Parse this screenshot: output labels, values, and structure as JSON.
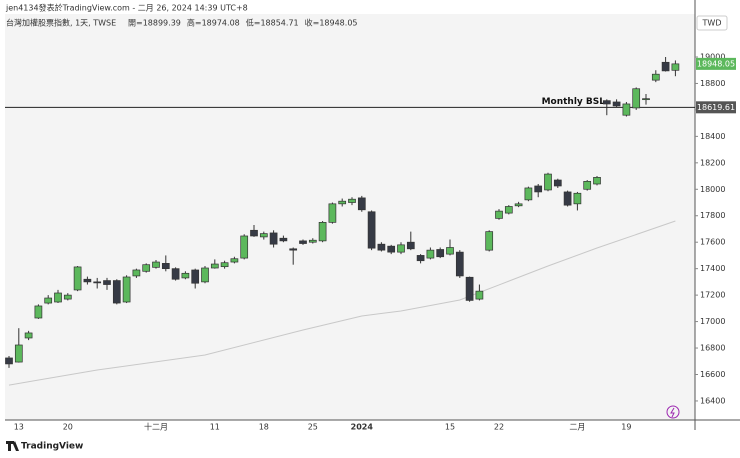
{
  "header": {
    "attribution": "jen4134發表於TradingView.com - 二月 26, 2024 14:39 UTC+8",
    "legend_title": "台灣加權股票指數, 1天, TWSE",
    "legend_values": [
      "開=18899.39",
      "高=18974.08",
      "低=18854.71",
      "收=18948.05"
    ],
    "currency": "TWD",
    "brand": "TradingView"
  },
  "chart_data": {
    "type": "candlestick",
    "categories": [
      null,
      "13",
      null,
      null,
      null,
      null,
      "20",
      null,
      null,
      null,
      null,
      null,
      null,
      null,
      null,
      "十二月",
      null,
      null,
      null,
      null,
      null,
      "11",
      null,
      null,
      null,
      null,
      "18",
      null,
      null,
      null,
      null,
      "25",
      null,
      null,
      null,
      null,
      "2024",
      null,
      null,
      null,
      null,
      null,
      null,
      null,
      null,
      "15",
      null,
      null,
      null,
      null,
      "22",
      null,
      null,
      null,
      null,
      null,
      null,
      null,
      "二月",
      null,
      null,
      null,
      null,
      "19",
      null,
      null,
      null,
      null,
      null
    ],
    "open": [
      16725,
      16694,
      16876,
      17027,
      17140,
      17148,
      17170,
      17239,
      17320,
      17300,
      17310,
      17310,
      17148,
      17345,
      17380,
      17410,
      17440,
      17400,
      17330,
      17390,
      17300,
      17405,
      17415,
      17450,
      17480,
      17690,
      17640,
      17670,
      17630,
      17550,
      17610,
      17600,
      17610,
      17750,
      17890,
      17900,
      17935,
      17830,
      17585,
      17570,
      17525,
      17600,
      17500,
      17480,
      17545,
      17510,
      17525,
      17335,
      17170,
      17540,
      17780,
      17820,
      17875,
      17920,
      18025,
      17995,
      18070,
      17980,
      17890,
      18000,
      18040,
      18670,
      18660,
      18560,
      18615,
      18680,
      18825,
      18960,
      18899.39
    ],
    "high": [
      16740,
      16950,
      16930,
      17130,
      17200,
      17240,
      17215,
      17420,
      17340,
      17330,
      17330,
      17320,
      17350,
      17400,
      17440,
      17465,
      17500,
      17410,
      17380,
      17400,
      17420,
      17470,
      17460,
      17490,
      17660,
      17730,
      17680,
      17690,
      17650,
      17560,
      17620,
      17630,
      17760,
      17900,
      17930,
      17940,
      17950,
      17840,
      17600,
      17580,
      17600,
      17680,
      17510,
      17560,
      17560,
      17620,
      17540,
      17340,
      17280,
      17690,
      17850,
      17880,
      17905,
      18020,
      18040,
      18125,
      18080,
      17990,
      17980,
      18070,
      18100,
      18680,
      18680,
      18660,
      18770,
      18720,
      18900,
      19000,
      18974.08
    ],
    "low": [
      16650,
      16690,
      16860,
      17020,
      17130,
      17140,
      17160,
      17230,
      17280,
      17250,
      17240,
      17130,
      17140,
      17330,
      17370,
      17400,
      17380,
      17310,
      17320,
      17250,
      17290,
      17400,
      17400,
      17440,
      17470,
      17640,
      17620,
      17560,
      17600,
      17430,
      17580,
      17590,
      17600,
      17740,
      17870,
      17880,
      17830,
      17540,
      17530,
      17510,
      17510,
      17540,
      17440,
      17470,
      17480,
      17500,
      17330,
      17150,
      17160,
      17530,
      17770,
      17810,
      17865,
      17910,
      17940,
      17985,
      18010,
      17870,
      17840,
      17990,
      18030,
      18560,
      18620,
      18550,
      18600,
      18640,
      18810,
      18890,
      18854.71
    ],
    "close": [
      16680,
      16823,
      16914,
      17118,
      17178,
      17216,
      17200,
      17413,
      17300,
      17295,
      17280,
      17140,
      17337,
      17390,
      17430,
      17450,
      17400,
      17320,
      17365,
      17290,
      17405,
      17435,
      17445,
      17475,
      17647,
      17647,
      17665,
      17585,
      17610,
      17540,
      17590,
      17615,
      17750,
      17890,
      17910,
      17925,
      17845,
      17555,
      17540,
      17525,
      17580,
      17550,
      17460,
      17540,
      17490,
      17560,
      17345,
      17160,
      17230,
      17680,
      17835,
      17870,
      17890,
      18010,
      17980,
      18115,
      18025,
      17880,
      17970,
      18060,
      18090,
      18645,
      18630,
      18645,
      18760,
      18685,
      18870,
      18895,
      18948.05
    ],
    "up_color": "#5cb85c",
    "down_color": "#363a45",
    "ma": {
      "x": [
        0,
        9,
        20,
        30,
        36,
        40,
        46,
        50,
        55,
        60,
        68
      ],
      "values": [
        16520,
        16634,
        16747,
        16936,
        17042,
        17080,
        17163,
        17277,
        17420,
        17556,
        17760
      ],
      "color": "#c8c8c8"
    },
    "hline": {
      "value": 18619.61,
      "label": "Monthly BSL"
    },
    "ylim": [
      16256,
      19325
    ],
    "yticks": [
      16400,
      16600,
      16800,
      17000,
      17200,
      17400,
      17600,
      17800,
      18000,
      18200,
      18400,
      18600,
      18800,
      19000
    ],
    "grid": false
  }
}
